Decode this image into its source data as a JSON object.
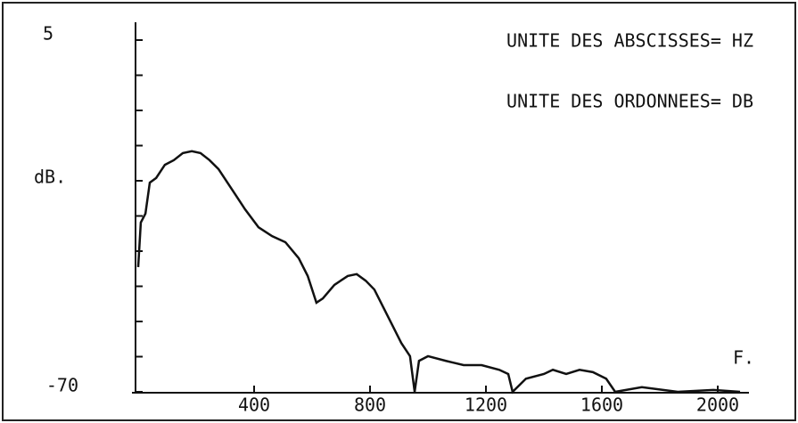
{
  "chart_data": {
    "type": "line",
    "annotations": [
      "UNITE DES ABSCISSES= HZ",
      "UNITE DES ORDONNEES= DB"
    ],
    "ylabel": "dB.",
    "xlabel": "F.",
    "x": [
      0,
      9,
      25,
      40,
      62,
      92,
      123,
      154,
      185,
      215,
      246,
      277,
      308,
      338,
      369,
      415,
      462,
      508,
      554,
      585,
      615,
      637,
      677,
      723,
      754,
      785,
      815,
      846,
      877,
      908,
      938,
      954,
      969,
      1000,
      1062,
      1123,
      1185,
      1246,
      1277,
      1292,
      1338,
      1400,
      1431,
      1477,
      1523,
      1569,
      1615,
      1646,
      1738,
      1862,
      1985,
      2077
    ],
    "series": [
      {
        "color": "#111111",
        "values": [
          -43.4,
          -33.9,
          -32,
          -25.4,
          -24.4,
          -21.6,
          -20.6,
          -19.1,
          -18.7,
          -19.1,
          -20.6,
          -22.5,
          -25.4,
          -28.2,
          -31.1,
          -34.9,
          -36.8,
          -38.1,
          -41.5,
          -45.3,
          -51,
          -50.1,
          -47.2,
          -45.3,
          -44.9,
          -46.3,
          -48.2,
          -52,
          -55.8,
          -59.6,
          -62.4,
          -70,
          -63.4,
          -62.4,
          -63.4,
          -64.3,
          -64.3,
          -65.3,
          -66.2,
          -70,
          -67.2,
          -66.2,
          -65.3,
          -66.2,
          -65.3,
          -65.8,
          -67.2,
          -70,
          -69,
          -70,
          -69.6,
          -70
        ]
      }
    ],
    "xlim": [
      0,
      2100
    ],
    "xticks": [
      400,
      800,
      1200,
      1600,
      2000
    ],
    "ylim": [
      -70,
      5
    ],
    "yticks": [
      -70,
      5
    ],
    "grid": false
  }
}
